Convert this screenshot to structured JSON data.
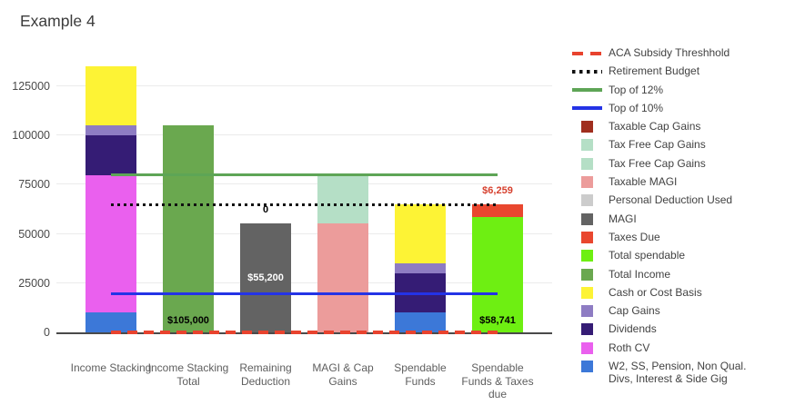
{
  "title": "Example 4",
  "colors": {
    "background": "#ffffff",
    "gridline": "#ebebeb",
    "baseline": "#4a4a4a",
    "title_text": "#3c3c3c",
    "axis_text": "#4a4a4a",
    "category_text": "#5e5e5e",
    "legend_text": "#424242"
  },
  "legend": [
    {
      "label": "ACA Subsidy Threshhold",
      "swatch": "dashed-line",
      "color": "#E8432E"
    },
    {
      "label": "Retirement Budget",
      "swatch": "dotted-line",
      "color": "#111111"
    },
    {
      "label": "Top of 12%",
      "swatch": "solid-line",
      "color": "#5EA556"
    },
    {
      "label": "Top of 10%",
      "swatch": "solid-line",
      "color": "#2433E6"
    },
    {
      "label": "Taxable Cap Gains",
      "swatch": "square",
      "color": "#A02E1E"
    },
    {
      "label": "Tax Free Cap Gains",
      "swatch": "square",
      "color": "#B5DFC6"
    },
    {
      "label": "Tax Free Cap Gains",
      "swatch": "square",
      "color": "#B5DFC6"
    },
    {
      "label": "Taxable MAGI",
      "swatch": "square",
      "color": "#EC9C9B"
    },
    {
      "label": "Personal Deduction Used",
      "swatch": "square",
      "color": "#CCCCCC"
    },
    {
      "label": "MAGI",
      "swatch": "square",
      "color": "#636363"
    },
    {
      "label": "Taxes Due",
      "swatch": "square",
      "color": "#E9472F"
    },
    {
      "label": "Total spendable",
      "swatch": "square",
      "color": "#6EEF12"
    },
    {
      "label": "Total Income",
      "swatch": "square",
      "color": "#6AA84F"
    },
    {
      "label": "Cash or Cost Basis",
      "swatch": "square",
      "color": "#FDF335"
    },
    {
      "label": "Cap Gains",
      "swatch": "square",
      "color": "#8E7CC3"
    },
    {
      "label": "Dividends",
      "swatch": "square",
      "color": "#351C75"
    },
    {
      "label": "Roth CV",
      "swatch": "square",
      "color": "#EA60EE"
    },
    {
      "label": "W2, SS, Pension, Non Qual. Divs, Interest & Side Gig",
      "swatch": "square",
      "color": "#3C78D8"
    }
  ],
  "chart_data": {
    "type": "bar",
    "subtype": "stacked-columns-with-threshold-lines",
    "title": "Example 4",
    "xlabel": "",
    "ylabel": "",
    "ylim": [
      0,
      143000
    ],
    "grid": true,
    "legend_position": "right",
    "y_axis": {
      "ticks": [
        0,
        25000,
        50000,
        75000,
        100000,
        125000
      ]
    },
    "categories": [
      "Income Stacking",
      "Income Stacking Total",
      "Remaining Deduction",
      "MAGI & Cap Gains",
      "Spendable Funds",
      "Spendable Funds & Taxes due"
    ],
    "bars": [
      {
        "category": "Income Stacking",
        "axis_label": "Income Stacking",
        "total": 135000,
        "segments": [
          {
            "series": "W2, SS, Pension, Non Qual. Divs, Interest & Side Gig",
            "value": 10000,
            "color": "#3C78D8"
          },
          {
            "series": "Roth CV",
            "value": 70000,
            "color": "#EA60EE"
          },
          {
            "series": "Dividends",
            "value": 20000,
            "color": "#351C75"
          },
          {
            "series": "Cap Gains",
            "value": 5000,
            "color": "#8E7CC3"
          },
          {
            "series": "Cash or Cost Basis",
            "value": 30000,
            "color": "#FDF335"
          }
        ],
        "annotations": []
      },
      {
        "category": "Income Stacking Total",
        "axis_label": "Income Stacking\nTotal",
        "total": 105000,
        "segments": [
          {
            "series": "Total Income",
            "value": 105000,
            "color": "#6AA84F"
          }
        ],
        "annotations": [
          {
            "text": "$105,000",
            "color": "#000000",
            "position": "bottom"
          }
        ]
      },
      {
        "category": "Remaining Deduction",
        "axis_label": "Remaining\nDeduction",
        "total": 55200,
        "segments": [
          {
            "series": "MAGI",
            "value": 55200,
            "color": "#636363"
          }
        ],
        "annotations": [
          {
            "text": "$55,200",
            "color": "#FFFFFF",
            "position": "center"
          },
          {
            "text": "0",
            "color": "#000000",
            "position": "above"
          }
        ]
      },
      {
        "category": "MAGI & Cap Gains",
        "axis_label": "MAGI & Cap\nGains",
        "total": 80000,
        "segments": [
          {
            "series": "Taxable MAGI",
            "value": 55200,
            "color": "#EC9C9B"
          },
          {
            "series": "Tax Free Cap Gains",
            "value": 24800,
            "color": "#B5DFC6"
          }
        ],
        "annotations": []
      },
      {
        "category": "Spendable Funds",
        "axis_label": "Spendable\nFunds",
        "total": 65000,
        "segments": [
          {
            "series": "W2, SS, Pension, Non Qual. Divs, Interest & Side Gig",
            "value": 10000,
            "color": "#3C78D8"
          },
          {
            "series": "Dividends",
            "value": 20000,
            "color": "#351C75"
          },
          {
            "series": "Cap Gains",
            "value": 5000,
            "color": "#8E7CC3"
          },
          {
            "series": "Cash or Cost Basis",
            "value": 30000,
            "color": "#FDF335"
          }
        ],
        "annotations": []
      },
      {
        "category": "Spendable Funds & Taxes due",
        "axis_label": "Spendable\nFunds & Taxes\ndue",
        "total": 65000,
        "segments": [
          {
            "series": "Total spendable",
            "value": 58741,
            "color": "#6EEF12"
          },
          {
            "series": "Taxes Due",
            "value": 6259,
            "color": "#E9472F"
          }
        ],
        "annotations": [
          {
            "text": "$58,741",
            "color": "#000000",
            "position": "bottom"
          },
          {
            "text": "$6,259",
            "color": "#D6402E",
            "position": "above"
          }
        ]
      }
    ],
    "lines": [
      {
        "name": "ACA Subsidy Threshhold",
        "value": 0,
        "style": "dashed",
        "color": "#E8432E"
      },
      {
        "name": "Retirement Budget",
        "value": 65000,
        "style": "dotted",
        "color": "#111111"
      },
      {
        "name": "Top of 12%",
        "value": 80250,
        "style": "solid",
        "color": "#5EA556"
      },
      {
        "name": "Top of 10%",
        "value": 19750,
        "style": "solid",
        "color": "#2433E6"
      }
    ]
  }
}
